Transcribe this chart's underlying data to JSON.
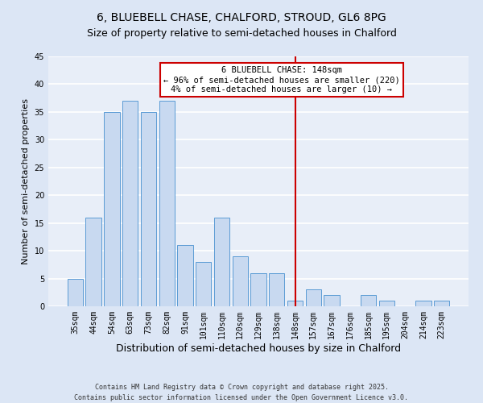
{
  "title": "6, BLUEBELL CHASE, CHALFORD, STROUD, GL6 8PG",
  "subtitle": "Size of property relative to semi-detached houses in Chalford",
  "xlabel": "Distribution of semi-detached houses by size in Chalford",
  "ylabel": "Number of semi-detached properties",
  "bar_labels": [
    "35sqm",
    "44sqm",
    "54sqm",
    "63sqm",
    "73sqm",
    "82sqm",
    "91sqm",
    "101sqm",
    "110sqm",
    "120sqm",
    "129sqm",
    "138sqm",
    "148sqm",
    "157sqm",
    "167sqm",
    "176sqm",
    "185sqm",
    "195sqm",
    "204sqm",
    "214sqm",
    "223sqm"
  ],
  "bar_values": [
    5,
    16,
    35,
    37,
    35,
    37,
    11,
    8,
    16,
    9,
    6,
    6,
    1,
    3,
    2,
    0,
    2,
    1,
    0,
    1,
    1
  ],
  "bar_color": "#c8d9f0",
  "bar_edge_color": "#5b9bd5",
  "highlight_index": 12,
  "highlight_line_color": "#cc0000",
  "ylim": [
    0,
    45
  ],
  "yticks": [
    0,
    5,
    10,
    15,
    20,
    25,
    30,
    35,
    40,
    45
  ],
  "annotation_title": "6 BLUEBELL CHASE: 148sqm",
  "annotation_line1": "← 96% of semi-detached houses are smaller (220)",
  "annotation_line2": "4% of semi-detached houses are larger (10) →",
  "annotation_box_color": "#ffffff",
  "annotation_box_edge": "#cc0000",
  "footer_line1": "Contains HM Land Registry data © Crown copyright and database right 2025.",
  "footer_line2": "Contains public sector information licensed under the Open Government Licence v3.0.",
  "bg_color": "#dce6f5",
  "plot_bg_color": "#e8eef8",
  "grid_color": "#ffffff",
  "title_fontsize": 10,
  "subtitle_fontsize": 9,
  "xlabel_fontsize": 9,
  "ylabel_fontsize": 8,
  "tick_fontsize": 7,
  "footer_fontsize": 6,
  "ann_fontsize": 7.5
}
